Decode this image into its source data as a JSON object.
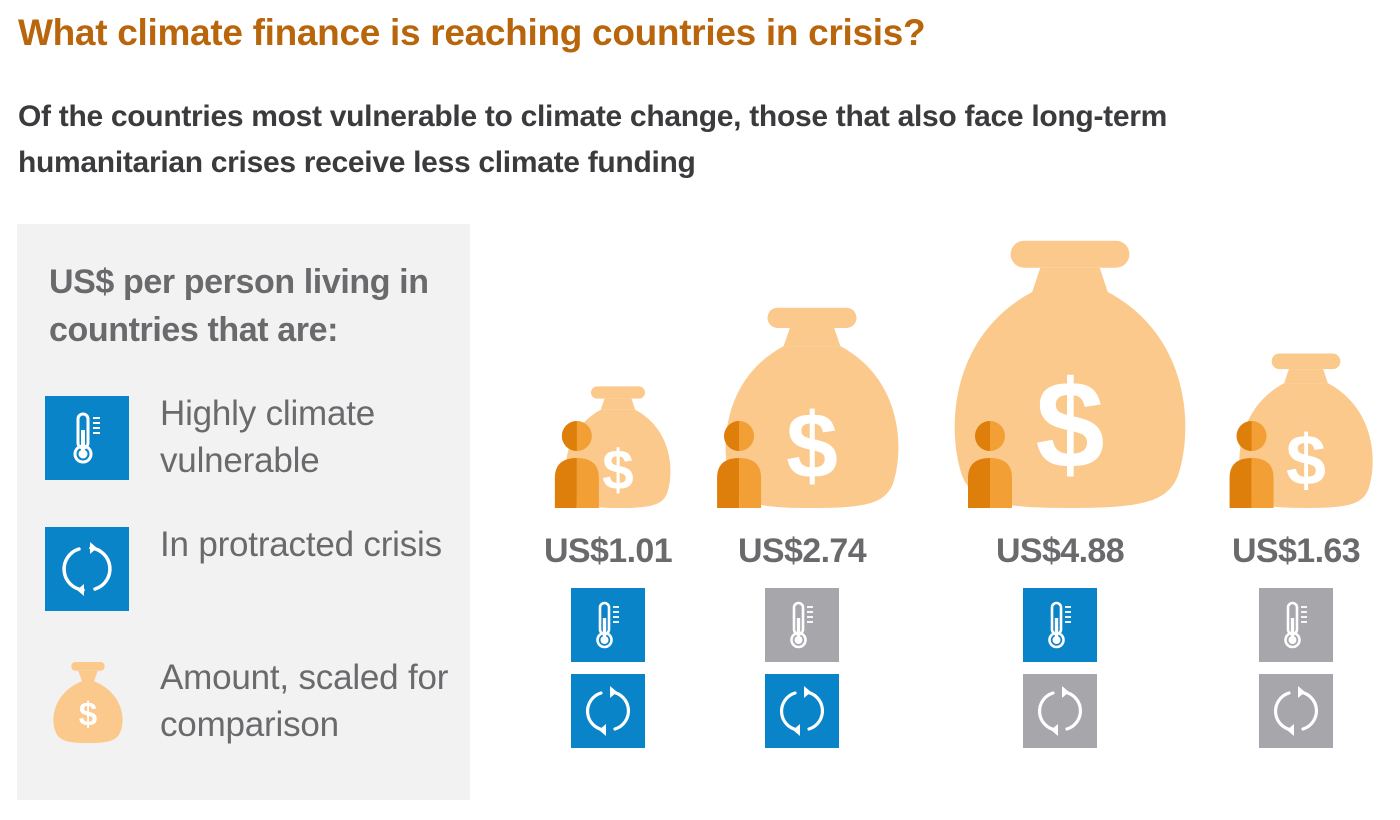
{
  "title": "What climate finance is reaching countries in crisis?",
  "subtitle": "Of the countries most vulnerable to climate change, those that also face long-term humanitarian crises receive less climate funding",
  "legend": {
    "heading": "US$ per person living in countries that are:",
    "items": [
      {
        "label": "Highly climate vulnerable",
        "icon": "thermometer-icon"
      },
      {
        "label": "In protracted crisis",
        "icon": "cycle-arrows-icon"
      },
      {
        "label": "Amount, scaled for comparison",
        "icon": "money-bag-icon"
      }
    ]
  },
  "colors": {
    "bag": "#fcc98c",
    "person_dark": "#de7f0b",
    "person_light": "#f2a035",
    "blue": "#0a84c9",
    "grey": "#a7a6aa",
    "title": "#b8650c"
  },
  "chart_data": {
    "type": "bar",
    "unit": "US$ per person",
    "categories": [
      "Highly climate vulnerable, in protracted crisis",
      "Not highly climate vulnerable, in protracted crisis",
      "Highly climate vulnerable, not in protracted crisis",
      "Not highly climate vulnerable, not in protracted crisis"
    ],
    "values": [
      1.01,
      2.74,
      4.88,
      1.63
    ],
    "labels": [
      "US$1.01",
      "US$2.74",
      "US$4.88",
      "US$1.63"
    ],
    "climate_vulnerable": [
      true,
      false,
      true,
      false
    ],
    "protracted_crisis": [
      true,
      true,
      false,
      false
    ]
  }
}
